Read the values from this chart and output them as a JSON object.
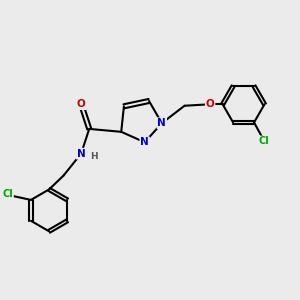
{
  "background_color": "#ebebeb",
  "bond_color": "#000000",
  "bond_width": 1.5,
  "dbo": 0.07,
  "atom_colors": {
    "C": "#000000",
    "N": "#0000cc",
    "O": "#cc0000",
    "Cl": "#00aa00",
    "H": "#555555"
  },
  "figsize": [
    3.0,
    3.0
  ],
  "dpi": 100
}
